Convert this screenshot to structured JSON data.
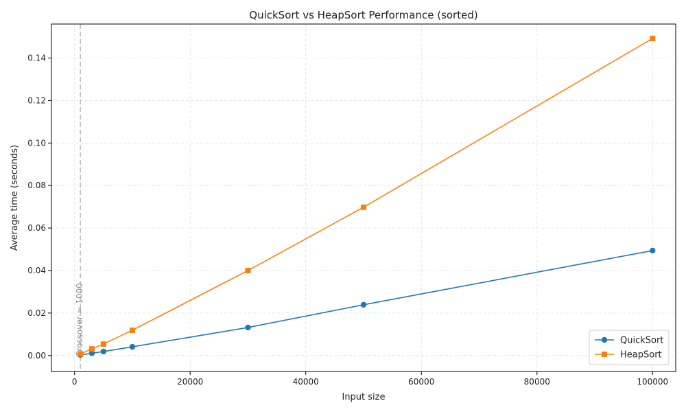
{
  "chart_data": {
    "type": "line",
    "title": "QuickSort vs HeapSort Performance (sorted)",
    "xlabel": "Input size",
    "ylabel": "Average time (seconds)",
    "xlim": [
      -4000,
      104000
    ],
    "ylim": [
      -0.0075,
      0.156
    ],
    "x_ticks": [
      0,
      20000,
      40000,
      60000,
      80000,
      100000
    ],
    "x_tick_labels": [
      "0",
      "20000",
      "40000",
      "60000",
      "80000",
      "100000"
    ],
    "y_ticks": [
      0.0,
      0.02,
      0.04,
      0.06,
      0.08,
      0.1,
      0.12,
      0.14
    ],
    "y_tick_labels": [
      "0.00",
      "0.02",
      "0.04",
      "0.06",
      "0.08",
      "0.10",
      "0.12",
      "0.14"
    ],
    "grid": true,
    "legend_position": "lower-right",
    "x": [
      1000,
      3000,
      5000,
      10000,
      30000,
      50000,
      100000
    ],
    "series": [
      {
        "name": "QuickSort",
        "color": "#1f77b4",
        "marker": "circle",
        "values": [
          0.0003,
          0.0011,
          0.0019,
          0.0041,
          0.0132,
          0.0239,
          0.0494
        ]
      },
      {
        "name": "HeapSort",
        "color": "#ff7f0e",
        "marker": "square",
        "values": [
          0.0008,
          0.0031,
          0.0054,
          0.0119,
          0.04,
          0.0698,
          0.1492
        ]
      }
    ],
    "annotation": {
      "text": "Crossover ≈ 1000",
      "x": 1000,
      "color": "#bbbbbb"
    }
  }
}
